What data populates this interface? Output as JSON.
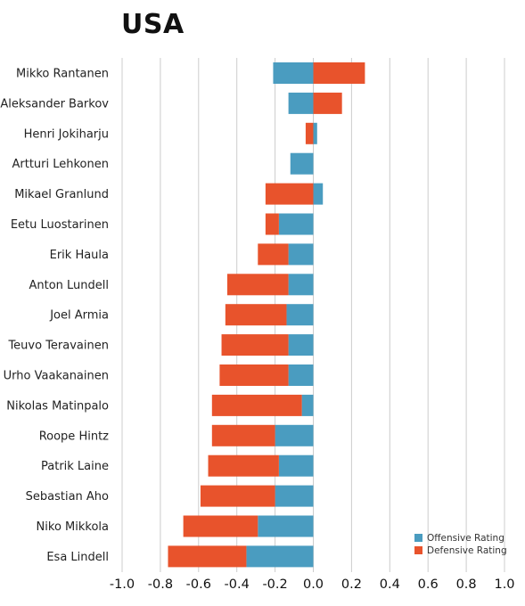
{
  "chart_data": {
    "type": "bar",
    "title": "USA",
    "orientation": "horizontal",
    "stacking": "diverging",
    "categories": [
      "Mikko Rantanen",
      "Aleksander Barkov",
      "Henri Jokiharju",
      "Artturi Lehkonen",
      "Mikael Granlund",
      "Eetu Luostarinen",
      "Erik Haula",
      "Anton Lundell",
      "Joel Armia",
      "Teuvo Teravainen",
      "Urho Vaakanainen",
      "Nikolas Matinpalo",
      "Roope Hintz",
      "Patrik Laine",
      "Sebastian Aho",
      "Niko Mikkola",
      "Esa Lindell"
    ],
    "series": [
      {
        "name": "Offensive Rating",
        "color": "#4a9cc0",
        "values": [
          -0.21,
          -0.13,
          0.02,
          -0.12,
          0.05,
          -0.18,
          -0.13,
          -0.13,
          -0.14,
          -0.13,
          -0.13,
          -0.06,
          -0.2,
          -0.18,
          -0.2,
          -0.29,
          -0.35
        ]
      },
      {
        "name": "Defensive Rating",
        "color": "#e8532c",
        "values": [
          0.27,
          0.15,
          -0.04,
          0.0,
          -0.25,
          -0.07,
          -0.16,
          -0.32,
          -0.32,
          -0.35,
          -0.36,
          -0.47,
          -0.33,
          -0.37,
          -0.39,
          -0.39,
          -0.41
        ]
      }
    ],
    "xlim": [
      -1.0,
      1.0
    ],
    "xticks": [
      "-1.0",
      "-0.8",
      "-0.6",
      "-0.4",
      "-0.2",
      "0.0",
      "0.2",
      "0.4",
      "0.6",
      "0.8",
      "1.0"
    ],
    "xlabel": "",
    "ylabel": "",
    "grid": true,
    "legend_position": "bottom-right"
  }
}
